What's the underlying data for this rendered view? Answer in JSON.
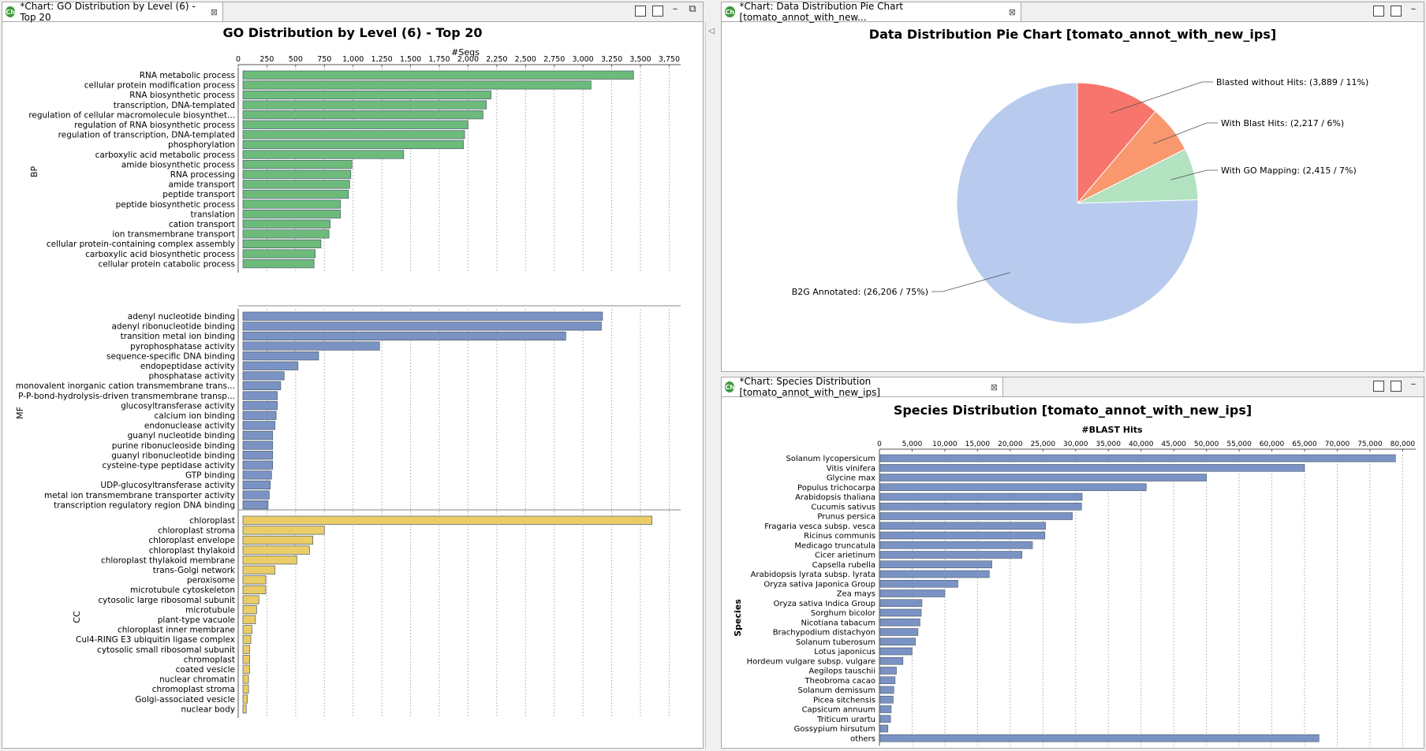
{
  "panels": {
    "go": {
      "tab_icon": "Ch",
      "tab_title": "*Chart: GO Distribution by Level (6) - Top 20",
      "close": "⊠"
    },
    "pie": {
      "tab_icon": "Ch",
      "tab_title": "*Chart: Data Distribution Pie Chart [tomato_annot_with_new...",
      "close": "⊠"
    },
    "species": {
      "tab_icon": "Ch",
      "tab_title": "*Chart: Species Distribution [tomato_annot_with_new_ips]",
      "close": "⊠"
    }
  },
  "icons": {
    "save": "save-icon",
    "save_as": "save-as-icon",
    "minimize": "minimize-icon",
    "restore": "restore-icon",
    "collapse": "collapse-left-icon"
  },
  "chart_data": [
    {
      "type": "bar",
      "orientation": "horizontal",
      "title": "GO Distribution by Level (6) - Top 20",
      "xlabel": "#Seqs",
      "xlim": [
        0,
        3850
      ],
      "ticks": [
        0,
        250,
        500,
        750,
        1000,
        1250,
        1500,
        1750,
        2000,
        2250,
        2500,
        2750,
        3000,
        3250,
        3500,
        3750
      ],
      "tick_labels": [
        "0",
        "250",
        "500",
        "750",
        "1,000",
        "1,250",
        "1,500",
        "1,750",
        "2,000",
        "2,250",
        "2,500",
        "2,750",
        "3,000",
        "3,250",
        "3,500",
        "3,750"
      ],
      "grid": true,
      "groups": [
        {
          "name": "BP",
          "color": "#6dbb7b",
          "categories": [
            "RNA metabolic process",
            "cellular protein modification process",
            "RNA biosynthetic process",
            "transcription, DNA-templated",
            "regulation of cellular macromolecule biosynthet...",
            "regulation of RNA biosynthetic process",
            "regulation of transcription, DNA-templated",
            "phosphorylation",
            "carboxylic acid metabolic process",
            "amide biosynthetic process",
            "RNA processing",
            "amide transport",
            "peptide transport",
            "peptide biosynthetic process",
            "translation",
            "cation transport",
            "ion transmembrane transport",
            "cellular protein-containing complex assembly",
            "carboxylic acid biosynthetic process",
            "cellular protein catabolic process"
          ],
          "values": [
            3440,
            3070,
            2200,
            2160,
            2130,
            2000,
            1970,
            1960,
            1440,
            990,
            980,
            970,
            960,
            890,
            890,
            800,
            790,
            720,
            670,
            660
          ]
        },
        {
          "name": "MF",
          "color": "#7b93c4",
          "categories": [
            "adenyl nucleotide binding",
            "adenyl ribonucleotide binding",
            "transition metal ion binding",
            "pyrophosphatase activity",
            "sequence-specific DNA binding",
            "endopeptidase activity",
            "phosphatase activity",
            "monovalent inorganic cation transmembrane trans...",
            "P-P-bond-hydrolysis-driven transmembrane transp...",
            "glucosyltransferase activity",
            "calcium ion binding",
            "endonuclease activity",
            "guanyl nucleotide binding",
            "purine ribonucleoside binding",
            "guanyl ribonucleotide binding",
            "cysteine-type peptidase activity",
            "GTP binding",
            "UDP-glucosyltransferase activity",
            "metal ion transmembrane transporter activity",
            "transcription regulatory region DNA binding"
          ],
          "values": [
            3170,
            3160,
            2850,
            1230,
            700,
            520,
            400,
            370,
            340,
            340,
            330,
            320,
            300,
            300,
            300,
            300,
            290,
            280,
            270,
            260
          ]
        },
        {
          "name": "CC",
          "color": "#ebcd67",
          "categories": [
            "chloroplast",
            "chloroplast stroma",
            "chloroplast envelope",
            "chloroplast thylakoid",
            "chloroplast thylakoid membrane",
            "trans-Golgi network",
            "peroxisome",
            "microtubule cytoskeleton",
            "cytosolic large ribosomal subunit",
            "microtubule",
            "plant-type vacuole",
            "chloroplast inner membrane",
            "Cul4-RING E3 ubiquitin ligase complex",
            "cytosolic small ribosomal subunit",
            "chromoplast",
            "coated vesicle",
            "nuclear chromatin",
            "chromoplast stroma",
            "Golgi-associated vesicle",
            "nuclear body"
          ],
          "values": [
            3600,
            750,
            650,
            620,
            510,
            320,
            240,
            240,
            180,
            160,
            150,
            120,
            110,
            100,
            100,
            100,
            90,
            90,
            80,
            70
          ]
        }
      ]
    },
    {
      "type": "pie",
      "title": "Data Distribution Pie Chart [tomato_annot_with_new_ips]",
      "slices": [
        {
          "label": "Blasted without Hits: (3,889 / 11%)",
          "value": 3889,
          "color": "#f7756c"
        },
        {
          "label": "With Blast Hits: (2,217 / 6%)",
          "value": 2217,
          "color": "#f9976e"
        },
        {
          "label": "With GO Mapping: (2,415 / 7%)",
          "value": 2415,
          "color": "#b2e2c0"
        },
        {
          "label": "B2G Annotated: (26,206 / 75%)",
          "value": 26206,
          "color": "#b8cbee"
        }
      ]
    },
    {
      "type": "bar",
      "orientation": "horizontal",
      "title": "Species Distribution [tomato_annot_with_new_ips]",
      "xlabel": "#BLAST Hits",
      "ylabel": "Species",
      "xlim": [
        0,
        82000
      ],
      "ticks": [
        0,
        5000,
        10000,
        15000,
        20000,
        25000,
        30000,
        35000,
        40000,
        45000,
        50000,
        55000,
        60000,
        65000,
        70000,
        75000,
        80000
      ],
      "tick_labels": [
        "0",
        "5,000",
        "10,000",
        "15,000",
        "20,000",
        "25,000",
        "30,000",
        "35,000",
        "40,000",
        "45,000",
        "50,000",
        "55,000",
        "60,000",
        "65,000",
        "70,000",
        "75,000",
        "80,000"
      ],
      "grid": true,
      "color": "#7b93c4",
      "categories": [
        "Solanum lycopersicum",
        "Vitis vinifera",
        "Glycine max",
        "Populus trichocarpa",
        "Arabidopsis thaliana",
        "Cucumis sativus",
        "Prunus persica",
        "Fragaria vesca subsp. vesca",
        "Ricinus communis",
        "Medicago truncatula",
        "Cicer arietinum",
        "Capsella rubella",
        "Arabidopsis lyrata subsp. lyrata",
        "Oryza sativa Japonica Group",
        "Zea mays",
        "Oryza sativa Indica Group",
        "Sorghum bicolor",
        "Nicotiana tabacum",
        "Brachypodium distachyon",
        "Solanum tuberosum",
        "Lotus japonicus",
        "Hordeum vulgare subsp. vulgare",
        "Aegilops tauschii",
        "Theobroma cacao",
        "Solanum demissum",
        "Picea sitchensis",
        "Capsicum annuum",
        "Triticum urartu",
        "Gossypium hirsutum",
        "others"
      ],
      "values": [
        78900,
        65000,
        50000,
        40800,
        31000,
        30900,
        29500,
        25400,
        25300,
        23400,
        21800,
        17200,
        16800,
        12000,
        10000,
        6500,
        6400,
        6200,
        5900,
        5500,
        5000,
        3600,
        2600,
        2400,
        2200,
        2100,
        1800,
        1700,
        1300,
        67200
      ]
    }
  ]
}
